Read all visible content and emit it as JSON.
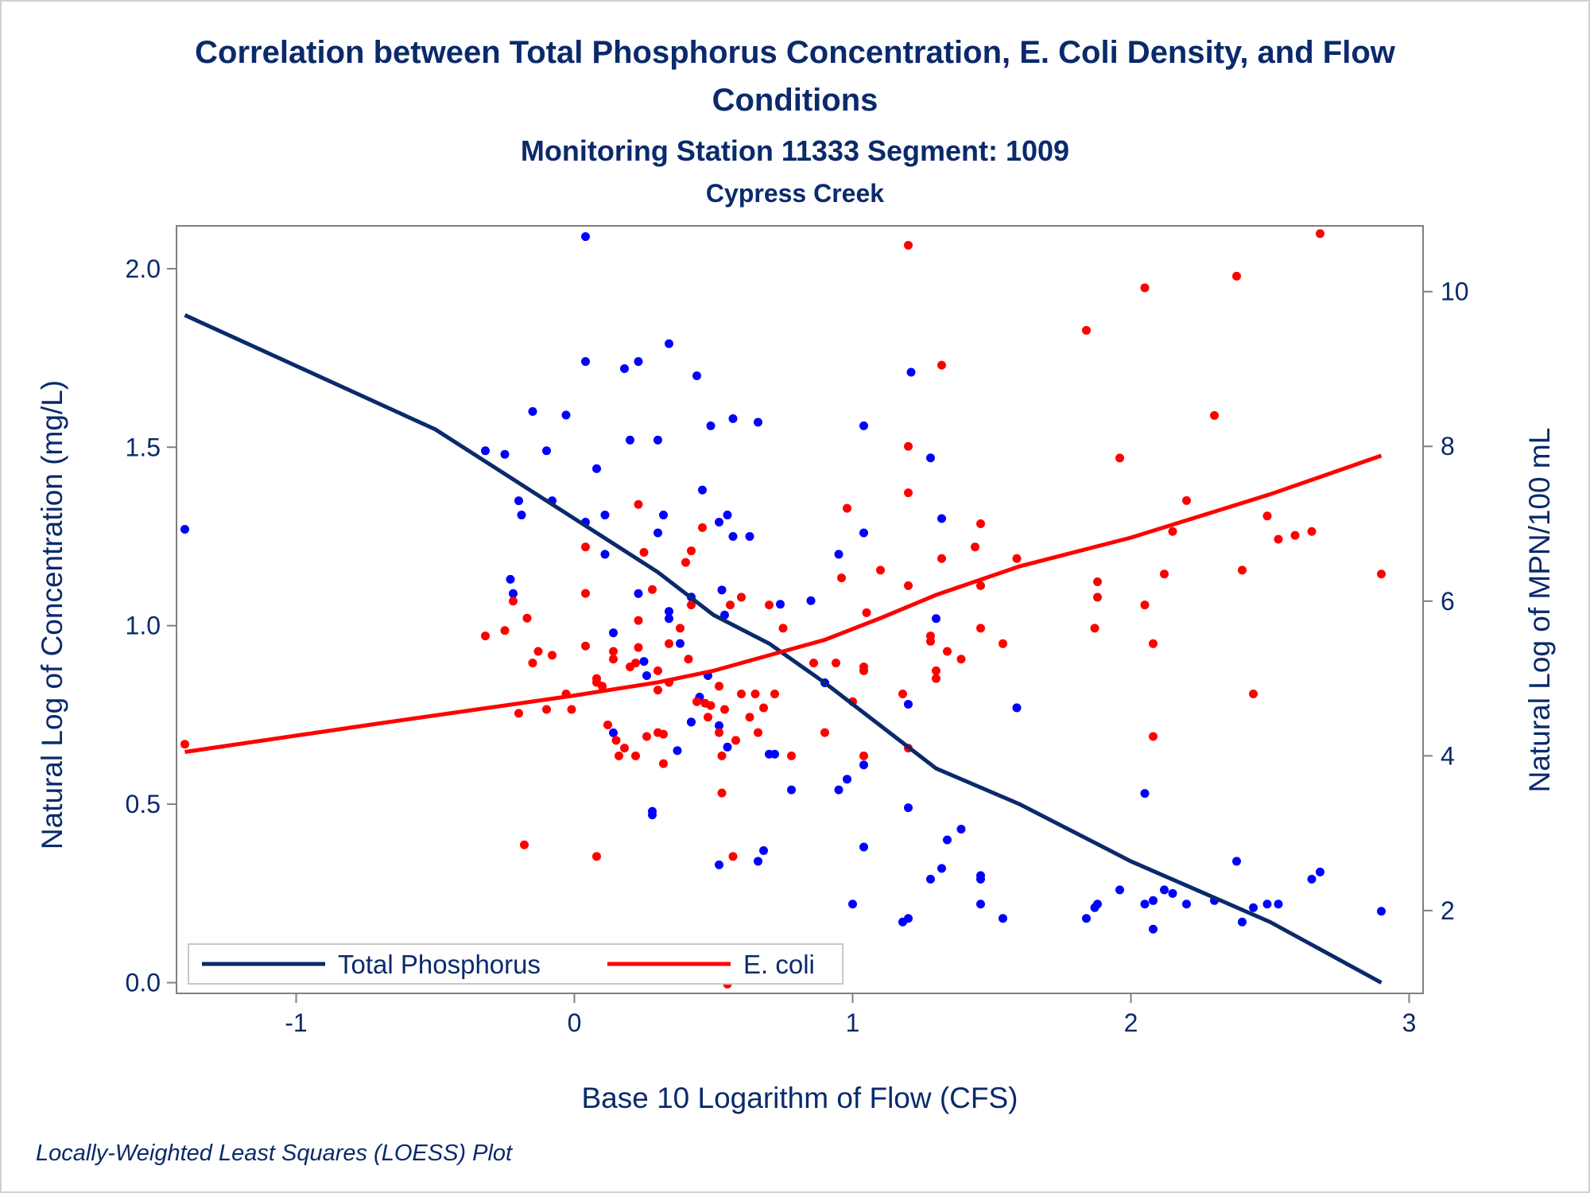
{
  "chart_data": {
    "type": "scatter",
    "title": "Correlation between Total Phosphorus Concentration, E. Coli Density, and Flow Conditions",
    "title_lines": [
      "Correlation between Total Phosphorus Concentration, E. Coli Density, and Flow",
      "Conditions"
    ],
    "subtitle": "Monitoring Station 11333 Segment: 1009",
    "subtitle2": "Cypress Creek",
    "xlabel": "Base 10 Logarithm of Flow (CFS)",
    "ylabel_left": "Natural Log of Concentration (mg/L)",
    "ylabel_right": "Natural Log of MPN/100 mL",
    "footnote": "Locally-Weighted Least Squares (LOESS) Plot",
    "xlim": [
      -1.43,
      3.05
    ],
    "ylim_left": [
      -0.03,
      2.12
    ],
    "ylim_right": [
      0.93,
      10.85
    ],
    "x_ticks": [
      -1,
      0,
      1,
      2,
      3
    ],
    "x_tick_labels": [
      "-1",
      "0",
      "1",
      "2",
      "3"
    ],
    "y_left_ticks": [
      0.0,
      0.5,
      1.0,
      1.5,
      2.0
    ],
    "y_left_tick_labels": [
      "0.0",
      "0.5",
      "1.0",
      "1.5",
      "2.0"
    ],
    "y_right_ticks": [
      2,
      4,
      6,
      8,
      10
    ],
    "y_right_tick_labels": [
      "2",
      "4",
      "6",
      "8",
      "10"
    ],
    "legend_placement": "bottom-left inside",
    "grid": false,
    "colors": {
      "phosphorus": "#0a2a6b",
      "ecoli": "#ff0000",
      "phosphorus_points": "#0000ff",
      "ecoli_points": "#ff0000",
      "text": "#0a2a6b",
      "axis": "#7f7f7f"
    },
    "series": [
      {
        "name": "Total Phosphorus",
        "axis": "left",
        "points": [
          [
            -1.4,
            1.27
          ],
          [
            0.04,
            2.09
          ],
          [
            1.21,
            1.71
          ],
          [
            -0.32,
            1.49
          ],
          [
            -0.25,
            1.48
          ],
          [
            -0.2,
            1.35
          ],
          [
            -0.19,
            1.31
          ],
          [
            -0.15,
            1.6
          ],
          [
            -0.1,
            1.49
          ],
          [
            -0.08,
            1.35
          ],
          [
            -0.03,
            1.59
          ],
          [
            0.04,
            1.74
          ],
          [
            0.04,
            1.29
          ],
          [
            0.08,
            1.44
          ],
          [
            0.11,
            1.31
          ],
          [
            0.11,
            1.2
          ],
          [
            0.18,
            1.72
          ],
          [
            0.2,
            1.52
          ],
          [
            0.23,
            1.74
          ],
          [
            0.23,
            1.09
          ],
          [
            0.26,
            0.86
          ],
          [
            0.3,
            1.52
          ],
          [
            0.3,
            1.26
          ],
          [
            0.32,
            1.31
          ],
          [
            0.34,
            1.79
          ],
          [
            0.34,
            1.02
          ],
          [
            0.42,
            1.08
          ],
          [
            0.44,
            1.7
          ],
          [
            0.46,
            1.38
          ],
          [
            0.49,
            1.56
          ],
          [
            0.52,
            1.29
          ],
          [
            0.53,
            1.1
          ],
          [
            0.55,
            1.31
          ],
          [
            0.57,
            1.58
          ],
          [
            0.57,
            1.25
          ],
          [
            0.63,
            1.25
          ],
          [
            0.66,
            1.57
          ],
          [
            0.74,
            1.06
          ],
          [
            0.85,
            1.07
          ],
          [
            0.9,
            0.84
          ],
          [
            0.95,
            0.54
          ],
          [
            0.95,
            1.2
          ],
          [
            0.98,
            0.57
          ],
          [
            1.04,
            1.56
          ],
          [
            1.04,
            1.26
          ],
          [
            1.04,
            0.61
          ],
          [
            -0.23,
            1.13
          ],
          [
            -0.22,
            1.09
          ],
          [
            0.14,
            0.98
          ],
          [
            0.25,
            0.9
          ],
          [
            0.34,
            1.04
          ],
          [
            0.38,
            0.95
          ],
          [
            0.45,
            0.8
          ],
          [
            0.48,
            0.86
          ],
          [
            0.52,
            0.72
          ],
          [
            0.54,
            1.03
          ],
          [
            0.55,
            0.66
          ],
          [
            0.7,
            0.64
          ],
          [
            0.72,
            0.64
          ],
          [
            0.78,
            0.54
          ],
          [
            1.2,
            0.78
          ],
          [
            1.28,
            1.47
          ],
          [
            1.3,
            1.02
          ],
          [
            1.32,
            1.3
          ],
          [
            1.59,
            0.77
          ],
          [
            0.14,
            0.7
          ],
          [
            0.28,
            0.48
          ],
          [
            0.28,
            0.47
          ],
          [
            0.37,
            0.65
          ],
          [
            0.42,
            0.73
          ],
          [
            0.42,
            0.73
          ],
          [
            0.52,
            0.33
          ],
          [
            0.66,
            0.34
          ],
          [
            0.68,
            0.37
          ],
          [
            1.0,
            0.22
          ],
          [
            1.04,
            0.38
          ],
          [
            1.18,
            0.17
          ],
          [
            1.2,
            0.18
          ],
          [
            1.2,
            0.49
          ],
          [
            1.28,
            0.29
          ],
          [
            1.32,
            0.32
          ],
          [
            1.34,
            0.4
          ],
          [
            1.39,
            0.43
          ],
          [
            1.46,
            0.3
          ],
          [
            1.46,
            0.29
          ],
          [
            1.46,
            0.22
          ],
          [
            1.54,
            0.18
          ],
          [
            1.84,
            0.18
          ],
          [
            1.87,
            0.21
          ],
          [
            1.88,
            0.22
          ],
          [
            1.96,
            0.26
          ],
          [
            2.05,
            0.22
          ],
          [
            2.05,
            0.53
          ],
          [
            2.08,
            0.23
          ],
          [
            2.08,
            0.15
          ],
          [
            2.12,
            0.26
          ],
          [
            2.15,
            0.25
          ],
          [
            2.2,
            0.22
          ],
          [
            2.3,
            0.23
          ],
          [
            2.38,
            0.34
          ],
          [
            2.4,
            0.17
          ],
          [
            2.44,
            0.21
          ],
          [
            2.49,
            0.22
          ],
          [
            2.53,
            0.22
          ],
          [
            2.65,
            0.29
          ],
          [
            2.68,
            0.31
          ],
          [
            2.9,
            0.2
          ]
        ],
        "fit_line": [
          [
            -1.4,
            1.87
          ],
          [
            -0.5,
            1.55
          ],
          [
            0.0,
            1.3
          ],
          [
            0.3,
            1.15
          ],
          [
            0.5,
            1.03
          ],
          [
            0.7,
            0.95
          ],
          [
            0.9,
            0.84
          ],
          [
            1.1,
            0.72
          ],
          [
            1.3,
            0.6
          ],
          [
            1.6,
            0.5
          ],
          [
            2.0,
            0.34
          ],
          [
            2.5,
            0.17
          ],
          [
            2.9,
            0.0
          ]
        ]
      },
      {
        "name": "E. coli",
        "axis": "right",
        "points": [
          [
            -1.4,
            4.15
          ],
          [
            -0.32,
            5.55
          ],
          [
            -0.25,
            5.62
          ],
          [
            -0.22,
            6.0
          ],
          [
            -0.2,
            4.55
          ],
          [
            -0.17,
            5.78
          ],
          [
            -0.15,
            5.2
          ],
          [
            -0.13,
            5.35
          ],
          [
            -0.1,
            4.6
          ],
          [
            -0.08,
            5.3
          ],
          [
            -0.03,
            4.8
          ],
          [
            -0.01,
            4.6
          ],
          [
            0.04,
            5.42
          ],
          [
            0.04,
            6.7
          ],
          [
            0.04,
            6.1
          ],
          [
            0.08,
            5.0
          ],
          [
            0.08,
            4.95
          ],
          [
            0.1,
            4.9
          ],
          [
            0.12,
            4.4
          ],
          [
            0.14,
            5.35
          ],
          [
            0.14,
            5.25
          ],
          [
            0.15,
            4.2
          ],
          [
            0.16,
            4.0
          ],
          [
            0.18,
            4.1
          ],
          [
            0.2,
            5.15
          ],
          [
            0.22,
            5.2
          ],
          [
            0.22,
            4.0
          ],
          [
            0.23,
            5.4
          ],
          [
            0.23,
            5.75
          ],
          [
            0.23,
            7.25
          ],
          [
            0.25,
            6.63
          ],
          [
            0.26,
            4.25
          ],
          [
            0.28,
            6.15
          ],
          [
            0.3,
            4.3
          ],
          [
            0.3,
            4.85
          ],
          [
            0.3,
            5.1
          ],
          [
            0.32,
            3.9
          ],
          [
            0.32,
            4.28
          ],
          [
            0.34,
            4.95
          ],
          [
            0.34,
            5.45
          ],
          [
            0.38,
            5.65
          ],
          [
            0.4,
            6.5
          ],
          [
            0.41,
            5.25
          ],
          [
            0.42,
            5.95
          ],
          [
            0.42,
            6.65
          ],
          [
            0.44,
            4.7
          ],
          [
            0.46,
            6.95
          ],
          [
            0.47,
            4.68
          ],
          [
            0.48,
            4.5
          ],
          [
            0.49,
            4.65
          ],
          [
            0.52,
            4.9
          ],
          [
            0.52,
            4.3
          ],
          [
            0.53,
            3.52
          ],
          [
            0.53,
            4.0
          ],
          [
            0.54,
            4.6
          ],
          [
            0.55,
            1.05
          ],
          [
            0.56,
            5.95
          ],
          [
            0.57,
            2.7
          ],
          [
            0.58,
            4.2
          ],
          [
            0.6,
            6.05
          ],
          [
            0.6,
            4.8
          ],
          [
            0.63,
            4.5
          ],
          [
            0.65,
            4.8
          ],
          [
            0.66,
            4.3
          ],
          [
            0.68,
            4.62
          ],
          [
            0.7,
            5.95
          ],
          [
            0.72,
            4.8
          ],
          [
            0.75,
            5.65
          ],
          [
            0.78,
            4.0
          ],
          [
            0.86,
            5.2
          ],
          [
            0.9,
            4.3
          ],
          [
            0.94,
            5.2
          ],
          [
            0.96,
            6.3
          ],
          [
            0.98,
            7.2
          ],
          [
            1.0,
            4.7
          ],
          [
            1.04,
            5.15
          ],
          [
            1.04,
            5.1
          ],
          [
            1.04,
            4.0
          ],
          [
            1.05,
            5.85
          ],
          [
            1.1,
            6.4
          ],
          [
            1.2,
            10.6
          ],
          [
            1.2,
            8.0
          ],
          [
            1.2,
            7.4
          ],
          [
            1.2,
            6.2
          ],
          [
            1.18,
            4.8
          ],
          [
            1.2,
            4.1
          ],
          [
            1.28,
            5.55
          ],
          [
            1.28,
            5.48
          ],
          [
            1.3,
            5.1
          ],
          [
            1.3,
            5.0
          ],
          [
            1.32,
            9.05
          ],
          [
            1.32,
            6.55
          ],
          [
            1.34,
            5.35
          ],
          [
            1.39,
            5.25
          ],
          [
            1.44,
            6.7
          ],
          [
            1.46,
            7.0
          ],
          [
            1.46,
            6.2
          ],
          [
            1.46,
            5.65
          ],
          [
            1.54,
            5.45
          ],
          [
            1.59,
            6.55
          ],
          [
            1.84,
            9.5
          ],
          [
            1.87,
            5.65
          ],
          [
            1.88,
            6.25
          ],
          [
            1.88,
            6.05
          ],
          [
            1.96,
            7.85
          ],
          [
            2.05,
            10.05
          ],
          [
            2.05,
            5.95
          ],
          [
            2.08,
            5.45
          ],
          [
            2.08,
            4.25
          ],
          [
            2.12,
            6.35
          ],
          [
            2.15,
            6.9
          ],
          [
            2.2,
            7.3
          ],
          [
            2.3,
            8.4
          ],
          [
            2.38,
            10.2
          ],
          [
            2.4,
            6.4
          ],
          [
            2.44,
            4.8
          ],
          [
            2.49,
            7.1
          ],
          [
            2.53,
            6.8
          ],
          [
            2.59,
            6.85
          ],
          [
            2.65,
            6.9
          ],
          [
            2.68,
            10.75
          ],
          [
            2.9,
            6.35
          ],
          [
            -0.18,
            2.85
          ],
          [
            0.08,
            2.7
          ]
        ],
        "fit_line": [
          [
            -1.4,
            4.05
          ],
          [
            -0.7,
            4.42
          ],
          [
            0.0,
            4.78
          ],
          [
            0.3,
            4.95
          ],
          [
            0.5,
            5.1
          ],
          [
            0.7,
            5.3
          ],
          [
            0.9,
            5.5
          ],
          [
            1.1,
            5.78
          ],
          [
            1.3,
            6.08
          ],
          [
            1.6,
            6.45
          ],
          [
            2.0,
            6.82
          ],
          [
            2.5,
            7.38
          ],
          [
            2.9,
            7.88
          ]
        ]
      }
    ]
  }
}
